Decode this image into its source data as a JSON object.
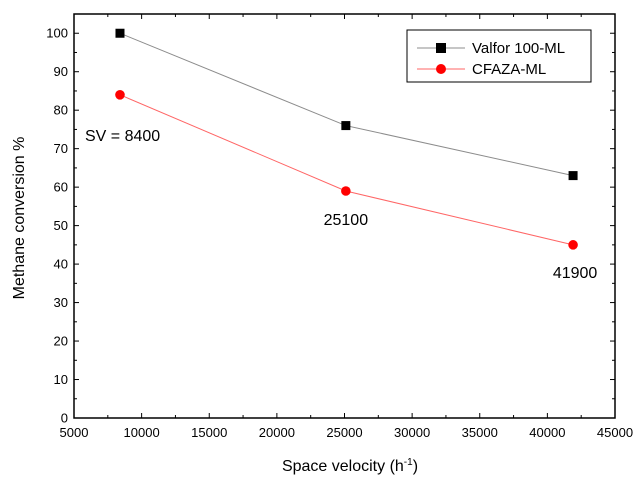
{
  "chart_data": {
    "type": "line",
    "xlabel": "Space velocity (h",
    "xlabel_sup": "-1",
    "xlabel_close": ")",
    "ylabel": "Methane conversion %",
    "xlim": [
      5000,
      45000
    ],
    "ylim": [
      0,
      105
    ],
    "xticks": [
      5000,
      10000,
      15000,
      20000,
      25000,
      30000,
      35000,
      40000,
      45000
    ],
    "yticks": [
      0,
      10,
      20,
      30,
      40,
      50,
      60,
      70,
      80,
      90,
      100
    ],
    "grid": false,
    "legend_position": "top-right",
    "series": [
      {
        "name": "Valfor 100-ML",
        "color": "#000000",
        "line_color": "#8c8c8c",
        "marker": "square",
        "x": [
          8400,
          25100,
          41900
        ],
        "y": [
          100,
          76,
          63
        ]
      },
      {
        "name": "CFAZA-ML",
        "color": "#ff0000",
        "line_color": "#ff6666",
        "marker": "circle",
        "x": [
          8400,
          25100,
          41900
        ],
        "y": [
          84,
          59,
          45
        ]
      }
    ],
    "annotations": [
      {
        "text": "SV = 8400",
        "x": 8400,
        "y": 84
      },
      {
        "text": "25100",
        "x": 25100,
        "y": 59
      },
      {
        "text": "41900",
        "x": 41900,
        "y": 45
      }
    ]
  }
}
